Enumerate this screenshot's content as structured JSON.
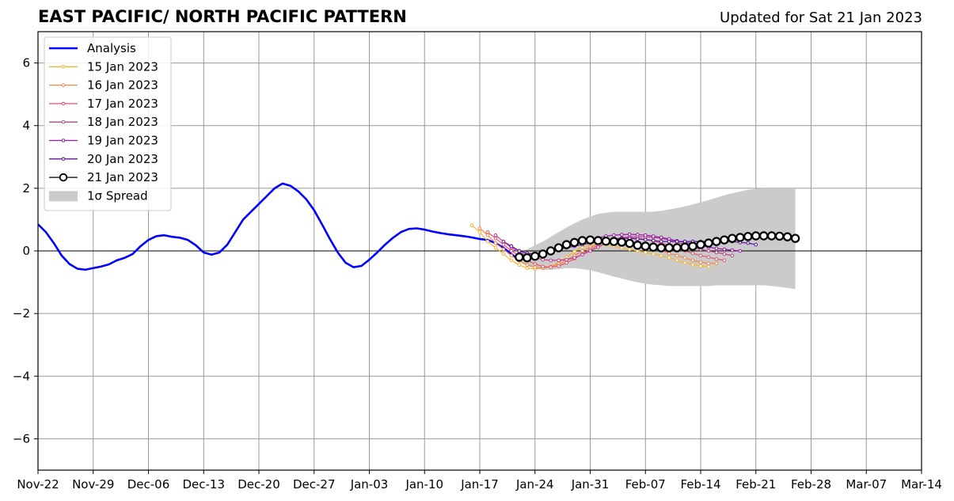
{
  "header": {
    "title": "EAST PACIFIC/ NORTH PACIFIC PATTERN",
    "updated": "Updated for Sat 21 Jan 2023"
  },
  "chart_data": {
    "type": "line",
    "title": "EAST PACIFIC/ NORTH PACIFIC PATTERN",
    "xlabel": "",
    "ylabel": "",
    "x_start_date": "2022-11-22",
    "xlim_days": [
      0,
      112
    ],
    "ylim": [
      -7,
      7
    ],
    "grid": true,
    "legend_position": "top-left",
    "x_ticks": [
      {
        "day": 0,
        "label": "Nov-22"
      },
      {
        "day": 7,
        "label": "Nov-29"
      },
      {
        "day": 14,
        "label": "Dec-06"
      },
      {
        "day": 21,
        "label": "Dec-13"
      },
      {
        "day": 28,
        "label": "Dec-20"
      },
      {
        "day": 35,
        "label": "Dec-27"
      },
      {
        "day": 42,
        "label": "Jan-03"
      },
      {
        "day": 49,
        "label": "Jan-10"
      },
      {
        "day": 56,
        "label": "Jan-17"
      },
      {
        "day": 63,
        "label": "Jan-24"
      },
      {
        "day": 70,
        "label": "Jan-31"
      },
      {
        "day": 77,
        "label": "Feb-07"
      },
      {
        "day": 84,
        "label": "Feb-14"
      },
      {
        "day": 91,
        "label": "Feb-21"
      },
      {
        "day": 98,
        "label": "Feb-28"
      },
      {
        "day": 105,
        "label": "Mar-07"
      },
      {
        "day": 112,
        "label": "Mar-14"
      }
    ],
    "y_ticks": [
      {
        "value": -6,
        "label": "−6"
      },
      {
        "value": -4,
        "label": "−4"
      },
      {
        "value": -2,
        "label": "−2"
      },
      {
        "value": 0,
        "label": "0"
      },
      {
        "value": 2,
        "label": "2"
      },
      {
        "value": 4,
        "label": "4"
      },
      {
        "value": 6,
        "label": "6"
      }
    ],
    "analysis": {
      "name": "Analysis",
      "color": "#0000ff",
      "x0": 0,
      "values": [
        0.85,
        0.6,
        0.25,
        -0.15,
        -0.42,
        -0.57,
        -0.6,
        -0.55,
        -0.5,
        -0.43,
        -0.3,
        -0.22,
        -0.1,
        0.15,
        0.35,
        0.47,
        0.5,
        0.45,
        0.42,
        0.35,
        0.18,
        -0.05,
        -0.12,
        -0.05,
        0.2,
        0.6,
        1.0,
        1.25,
        1.5,
        1.75,
        2.0,
        2.15,
        2.08,
        1.9,
        1.65,
        1.3,
        0.85,
        0.38,
        -0.05,
        -0.38,
        -0.52,
        -0.48,
        -0.28,
        -0.05,
        0.2,
        0.42,
        0.6,
        0.7,
        0.72,
        0.68,
        0.62,
        0.57,
        0.53,
        0.5,
        0.47,
        0.43,
        0.38,
        0.35,
        0.25,
        0.1,
        -0.1,
        -0.28
      ]
    },
    "forecasts": [
      {
        "name": "15 Jan 2023",
        "color": "#f5b534",
        "x0": 55,
        "values": [
          0.82,
          0.6,
          0.3,
          0.1,
          -0.1,
          -0.3,
          -0.45,
          -0.55,
          -0.58,
          -0.55,
          -0.5,
          -0.38,
          -0.2,
          -0.02,
          0.12,
          0.2,
          0.22,
          0.2,
          0.15,
          0.1,
          0.05,
          0.0,
          -0.05,
          -0.1,
          -0.15,
          -0.22,
          -0.3,
          -0.38,
          -0.44,
          -0.48,
          -0.5
        ]
      },
      {
        "name": "16 Jan 2023",
        "color": "#f0864a",
        "x0": 56,
        "values": [
          0.72,
          0.5,
          0.25,
          0.05,
          -0.15,
          -0.32,
          -0.45,
          -0.52,
          -0.55,
          -0.5,
          -0.42,
          -0.3,
          -0.15,
          0.0,
          0.12,
          0.22,
          0.3,
          0.33,
          0.32,
          0.3,
          0.25,
          0.18,
          0.1,
          0.02,
          -0.08,
          -0.15,
          -0.22,
          -0.3,
          -0.36,
          -0.4,
          -0.4
        ]
      },
      {
        "name": "17 Jan 2023",
        "color": "#e0566a",
        "x0": 57,
        "values": [
          0.6,
          0.4,
          0.2,
          0.0,
          -0.15,
          -0.3,
          -0.42,
          -0.5,
          -0.52,
          -0.48,
          -0.38,
          -0.25,
          -0.1,
          0.05,
          0.18,
          0.3,
          0.38,
          0.42,
          0.42,
          0.4,
          0.37,
          0.32,
          0.25,
          0.17,
          0.08,
          0.0,
          -0.08,
          -0.15,
          -0.2,
          -0.26,
          -0.3
        ]
      },
      {
        "name": "18 Jan 2023",
        "color": "#bc3d8c",
        "x0": 58,
        "values": [
          0.5,
          0.3,
          0.1,
          -0.05,
          -0.15,
          -0.22,
          -0.28,
          -0.3,
          -0.3,
          -0.28,
          -0.22,
          -0.12,
          0.0,
          0.12,
          0.25,
          0.35,
          0.42,
          0.45,
          0.45,
          0.45,
          0.43,
          0.4,
          0.35,
          0.28,
          0.2,
          0.12,
          0.05,
          0.0,
          -0.05,
          -0.1,
          -0.15
        ]
      },
      {
        "name": "19 Jan 2023",
        "color": "#9417a6",
        "x0": 59,
        "values": [
          0.3,
          0.15,
          0.0,
          -0.08,
          -0.1,
          -0.08,
          -0.02,
          0.05,
          0.12,
          0.2,
          0.28,
          0.35,
          0.42,
          0.47,
          0.5,
          0.52,
          0.53,
          0.52,
          0.5,
          0.47,
          0.43,
          0.38,
          0.32,
          0.27,
          0.22,
          0.18,
          0.12,
          0.08,
          0.05,
          0.02,
          0.0
        ]
      },
      {
        "name": "20 Jan 2023",
        "color": "#5a0fa0",
        "x0": 60,
        "values": [
          0.15,
          0.0,
          -0.08,
          -0.1,
          -0.05,
          0.0,
          0.05,
          0.1,
          0.15,
          0.2,
          0.25,
          0.3,
          0.35,
          0.38,
          0.4,
          0.4,
          0.38,
          0.36,
          0.33,
          0.3,
          0.3,
          0.3,
          0.3,
          0.3,
          0.3,
          0.3,
          0.3,
          0.3,
          0.3,
          0.27,
          0.25,
          0.2
        ]
      },
      {
        "name": "21 Jan 2023",
        "color": "#000000",
        "x0": 61,
        "values": [
          -0.2,
          -0.22,
          -0.17,
          -0.1,
          0.0,
          0.1,
          0.2,
          0.27,
          0.33,
          0.35,
          0.33,
          0.31,
          0.3,
          0.28,
          0.24,
          0.18,
          0.15,
          0.12,
          0.1,
          0.1,
          0.1,
          0.12,
          0.15,
          0.2,
          0.25,
          0.3,
          0.35,
          0.4,
          0.43,
          0.46,
          0.48,
          0.48,
          0.48,
          0.47,
          0.45,
          0.4
        ]
      }
    ],
    "spread": {
      "name": "1σ Spread",
      "color": "#cbcbcb",
      "x0": 61,
      "upper": [
        -0.05,
        0.05,
        0.18,
        0.3,
        0.45,
        0.6,
        0.75,
        0.88,
        1.0,
        1.1,
        1.18,
        1.22,
        1.25,
        1.25,
        1.25,
        1.25,
        1.25,
        1.25,
        1.28,
        1.32,
        1.37,
        1.42,
        1.48,
        1.55,
        1.62,
        1.7,
        1.78,
        1.84,
        1.9,
        1.95,
        1.98,
        2.0,
        2.0,
        2.0,
        2.0,
        2.0
      ],
      "lower": [
        -0.35,
        -0.48,
        -0.55,
        -0.6,
        -0.6,
        -0.58,
        -0.55,
        -0.55,
        -0.58,
        -0.62,
        -0.68,
        -0.75,
        -0.82,
        -0.88,
        -0.95,
        -1.0,
        -1.05,
        -1.08,
        -1.1,
        -1.12,
        -1.12,
        -1.12,
        -1.12,
        -1.12,
        -1.12,
        -1.1,
        -1.1,
        -1.1,
        -1.1,
        -1.1,
        -1.1,
        -1.1,
        -1.12,
        -1.15,
        -1.18,
        -1.22
      ]
    }
  }
}
